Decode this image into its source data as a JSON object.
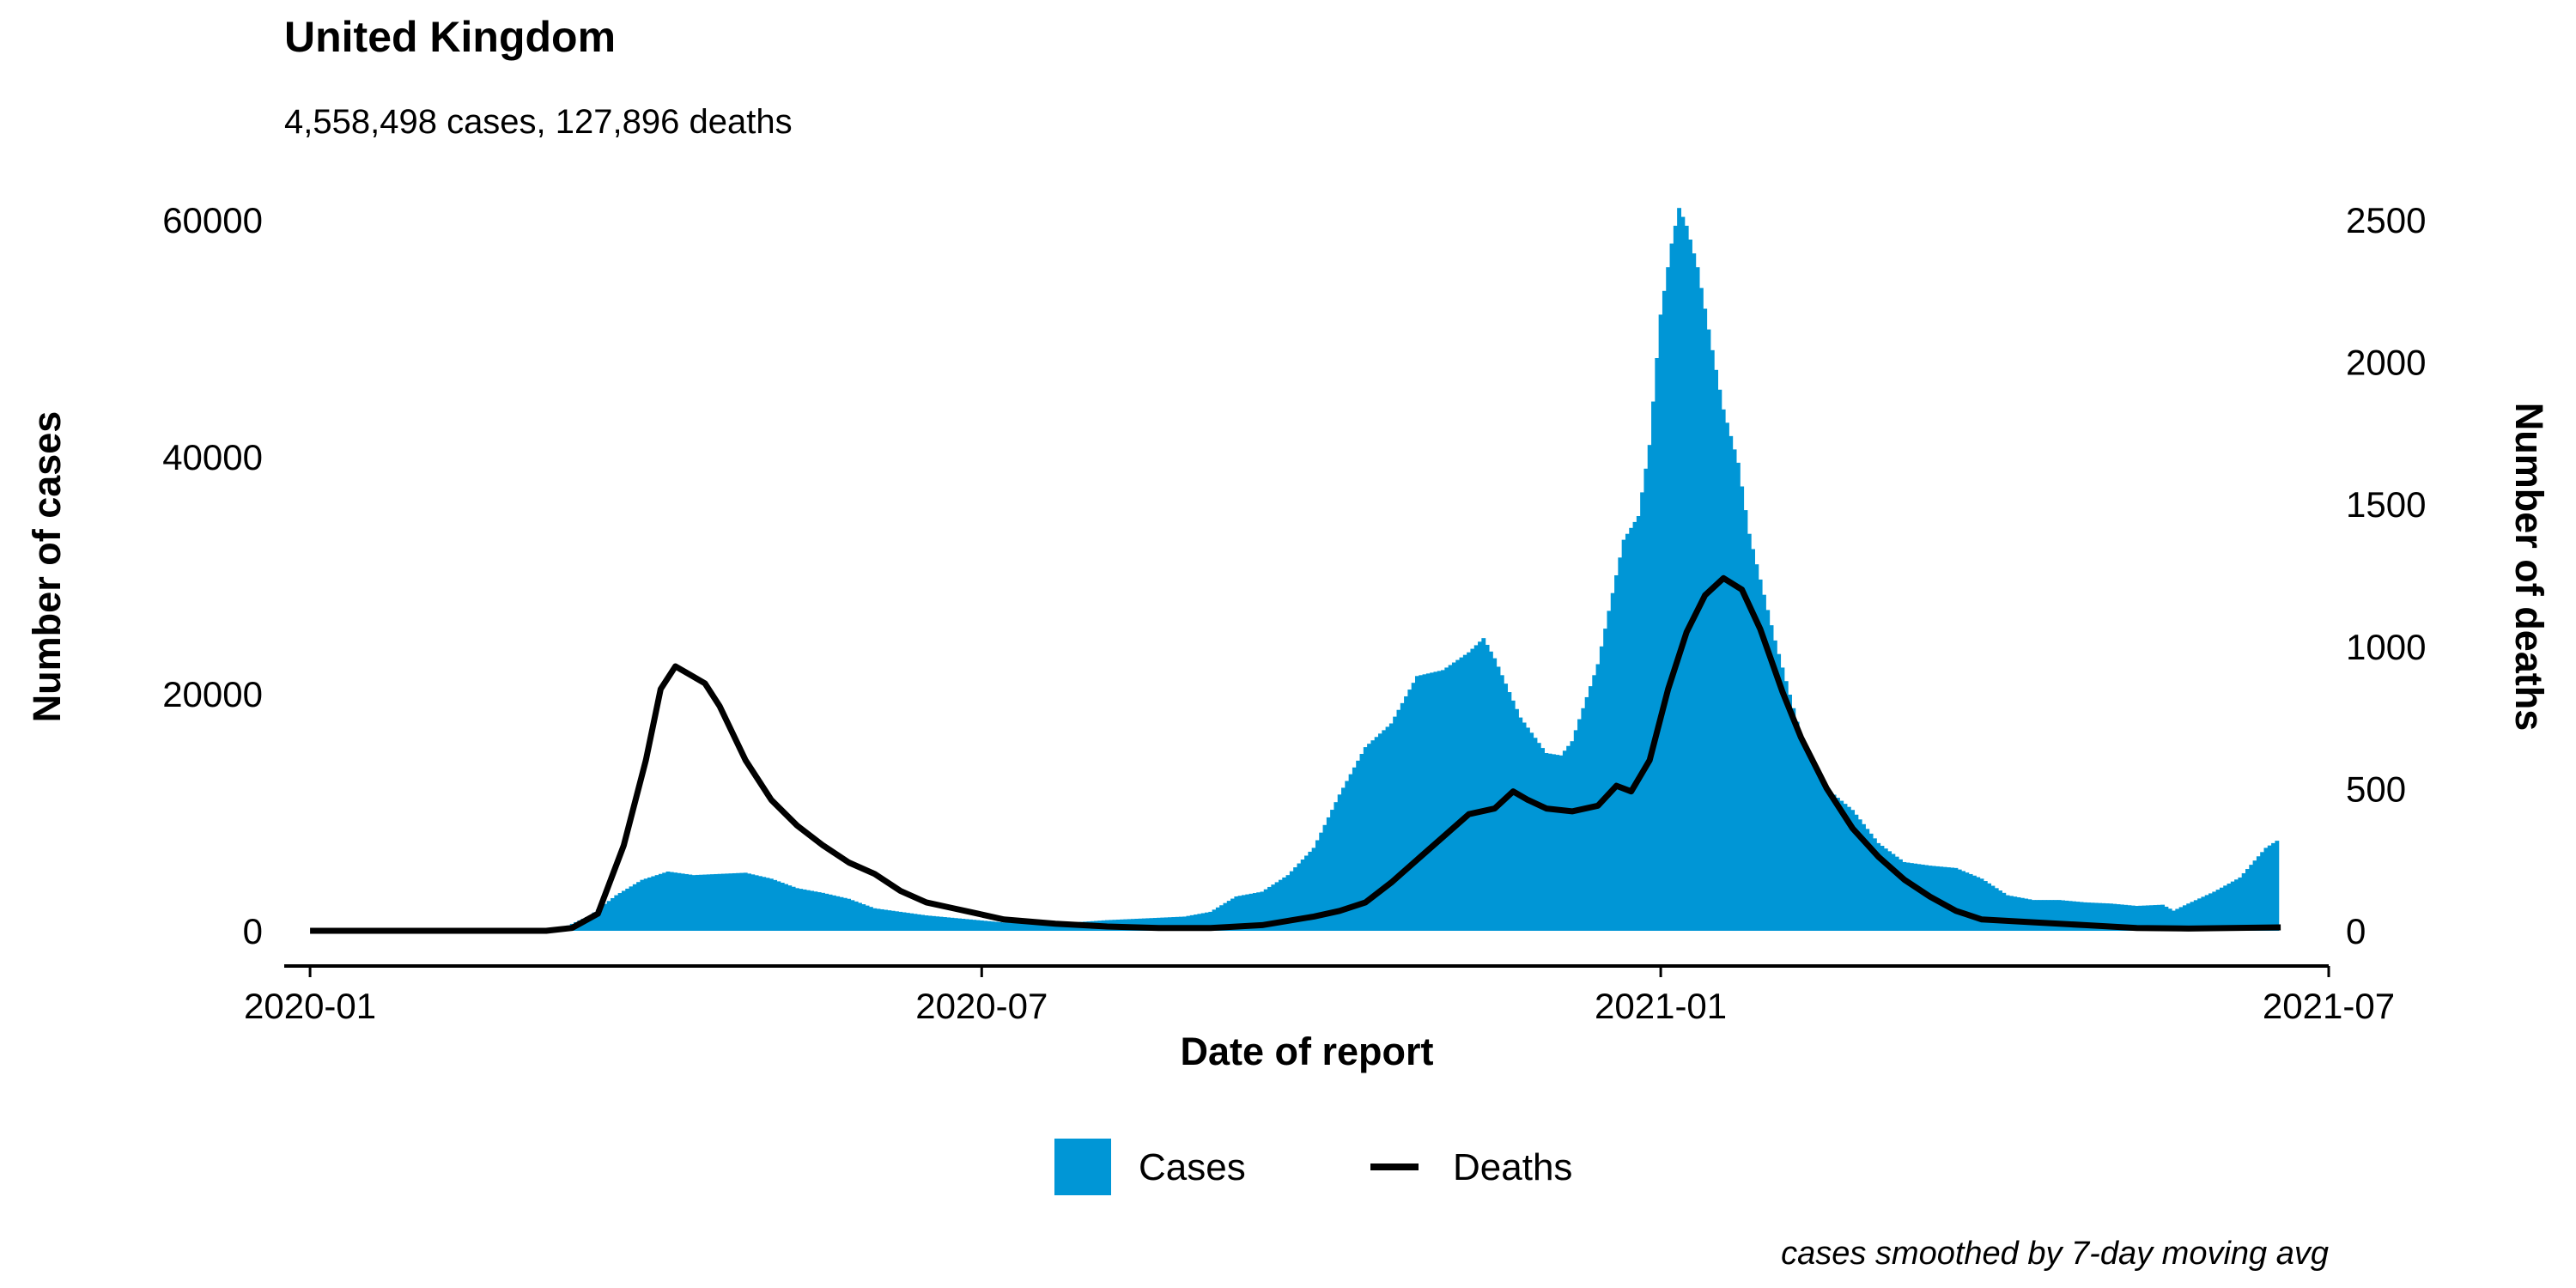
{
  "chart_data": {
    "type": "bar+line",
    "title": "United Kingdom",
    "subtitle": "4,558,498 cases, 127,896 deaths",
    "xlabel": "Date of report",
    "ylabel_left": "Number of cases",
    "ylabel_right": "Number of deaths",
    "caption": "cases smoothed by 7-day moving avg",
    "xlim": [
      "2019-12-25",
      "2021-07-01"
    ],
    "x_ticks": [
      "2020-01",
      "2020-07",
      "2021-01",
      "2021-07"
    ],
    "ylim_left": [
      0,
      60000
    ],
    "y_ticks_left": [
      "0",
      "20000",
      "40000",
      "60000"
    ],
    "ylim_right": [
      0,
      2500
    ],
    "y_ticks_right": [
      "0",
      "500",
      "1000",
      "1500",
      "2000",
      "2500"
    ],
    "grid": false,
    "legend_position": "bottom",
    "colors": {
      "cases": "#0096D6",
      "deaths": "#000000"
    },
    "series": [
      {
        "name": "Cases",
        "kind": "bar",
        "axis": "left",
        "points": [
          [
            "2020-01-01",
            0
          ],
          [
            "2020-02-15",
            0
          ],
          [
            "2020-03-01",
            20
          ],
          [
            "2020-03-10",
            300
          ],
          [
            "2020-03-17",
            1300
          ],
          [
            "2020-03-24",
            3000
          ],
          [
            "2020-03-31",
            4300
          ],
          [
            "2020-04-07",
            5000
          ],
          [
            "2020-04-14",
            4700
          ],
          [
            "2020-04-21",
            4800
          ],
          [
            "2020-04-28",
            4900
          ],
          [
            "2020-05-05",
            4400
          ],
          [
            "2020-05-12",
            3600
          ],
          [
            "2020-05-19",
            3200
          ],
          [
            "2020-05-26",
            2700
          ],
          [
            "2020-06-02",
            1900
          ],
          [
            "2020-06-09",
            1600
          ],
          [
            "2020-06-16",
            1300
          ],
          [
            "2020-06-23",
            1100
          ],
          [
            "2020-06-30",
            900
          ],
          [
            "2020-07-07",
            700
          ],
          [
            "2020-07-14",
            600
          ],
          [
            "2020-07-21",
            650
          ],
          [
            "2020-07-28",
            750
          ],
          [
            "2020-08-04",
            900
          ],
          [
            "2020-08-11",
            1000
          ],
          [
            "2020-08-18",
            1100
          ],
          [
            "2020-08-25",
            1200
          ],
          [
            "2020-09-01",
            1600
          ],
          [
            "2020-09-08",
            2900
          ],
          [
            "2020-09-15",
            3300
          ],
          [
            "2020-09-22",
            4700
          ],
          [
            "2020-09-29",
            7000
          ],
          [
            "2020-10-06",
            11500
          ],
          [
            "2020-10-13",
            15500
          ],
          [
            "2020-10-20",
            17500
          ],
          [
            "2020-10-27",
            21500
          ],
          [
            "2020-11-03",
            22000
          ],
          [
            "2020-11-10",
            23500
          ],
          [
            "2020-11-14",
            24700
          ],
          [
            "2020-11-17",
            23000
          ],
          [
            "2020-11-24",
            18000
          ],
          [
            "2020-12-01",
            15000
          ],
          [
            "2020-12-05",
            14800
          ],
          [
            "2020-12-08",
            16000
          ],
          [
            "2020-12-15",
            22500
          ],
          [
            "2020-12-22",
            33000
          ],
          [
            "2020-12-26",
            35000
          ],
          [
            "2020-12-29",
            41000
          ],
          [
            "2021-01-01",
            52000
          ],
          [
            "2021-01-04",
            58000
          ],
          [
            "2021-01-06",
            61000
          ],
          [
            "2021-01-08",
            59500
          ],
          [
            "2021-01-11",
            56000
          ],
          [
            "2021-01-15",
            49000
          ],
          [
            "2021-01-18",
            44000
          ],
          [
            "2021-01-22",
            39500
          ],
          [
            "2021-01-25",
            33500
          ],
          [
            "2021-02-01",
            24500
          ],
          [
            "2021-02-08",
            16500
          ],
          [
            "2021-02-15",
            12000
          ],
          [
            "2021-02-22",
            10200
          ],
          [
            "2021-03-01",
            7400
          ],
          [
            "2021-03-08",
            5800
          ],
          [
            "2021-03-15",
            5500
          ],
          [
            "2021-03-22",
            5300
          ],
          [
            "2021-03-29",
            4400
          ],
          [
            "2021-04-05",
            3000
          ],
          [
            "2021-04-12",
            2600
          ],
          [
            "2021-04-19",
            2600
          ],
          [
            "2021-04-26",
            2400
          ],
          [
            "2021-05-03",
            2300
          ],
          [
            "2021-05-10",
            2100
          ],
          [
            "2021-05-17",
            2200
          ],
          [
            "2021-05-20",
            1700
          ],
          [
            "2021-05-24",
            2300
          ],
          [
            "2021-05-31",
            3300
          ],
          [
            "2021-06-07",
            4500
          ],
          [
            "2021-06-14",
            7000
          ],
          [
            "2021-06-18",
            7800
          ]
        ]
      },
      {
        "name": "Deaths",
        "kind": "line",
        "axis": "right",
        "points": [
          [
            "2020-01-01",
            0
          ],
          [
            "2020-03-05",
            0
          ],
          [
            "2020-03-12",
            10
          ],
          [
            "2020-03-19",
            60
          ],
          [
            "2020-03-26",
            300
          ],
          [
            "2020-04-01",
            600
          ],
          [
            "2020-04-05",
            850
          ],
          [
            "2020-04-09",
            930
          ],
          [
            "2020-04-13",
            900
          ],
          [
            "2020-04-17",
            870
          ],
          [
            "2020-04-21",
            790
          ],
          [
            "2020-04-28",
            600
          ],
          [
            "2020-05-05",
            460
          ],
          [
            "2020-05-12",
            370
          ],
          [
            "2020-05-19",
            300
          ],
          [
            "2020-05-26",
            240
          ],
          [
            "2020-06-02",
            200
          ],
          [
            "2020-06-09",
            140
          ],
          [
            "2020-06-16",
            100
          ],
          [
            "2020-06-23",
            80
          ],
          [
            "2020-06-30",
            60
          ],
          [
            "2020-07-07",
            40
          ],
          [
            "2020-07-21",
            25
          ],
          [
            "2020-08-04",
            15
          ],
          [
            "2020-08-18",
            10
          ],
          [
            "2020-09-01",
            10
          ],
          [
            "2020-09-15",
            20
          ],
          [
            "2020-09-29",
            50
          ],
          [
            "2020-10-06",
            70
          ],
          [
            "2020-10-13",
            100
          ],
          [
            "2020-10-20",
            170
          ],
          [
            "2020-10-27",
            250
          ],
          [
            "2020-11-03",
            330
          ],
          [
            "2020-11-10",
            410
          ],
          [
            "2020-11-17",
            430
          ],
          [
            "2020-11-22",
            490
          ],
          [
            "2020-11-26",
            460
          ],
          [
            "2020-12-01",
            430
          ],
          [
            "2020-12-08",
            420
          ],
          [
            "2020-12-15",
            440
          ],
          [
            "2020-12-20",
            510
          ],
          [
            "2020-12-24",
            490
          ],
          [
            "2020-12-29",
            600
          ],
          [
            "2021-01-03",
            850
          ],
          [
            "2021-01-08",
            1050
          ],
          [
            "2021-01-13",
            1180
          ],
          [
            "2021-01-18",
            1240
          ],
          [
            "2021-01-23",
            1200
          ],
          [
            "2021-01-28",
            1060
          ],
          [
            "2021-02-03",
            840
          ],
          [
            "2021-02-08",
            680
          ],
          [
            "2021-02-15",
            500
          ],
          [
            "2021-02-22",
            360
          ],
          [
            "2021-03-01",
            260
          ],
          [
            "2021-03-08",
            180
          ],
          [
            "2021-03-15",
            120
          ],
          [
            "2021-03-22",
            70
          ],
          [
            "2021-03-29",
            40
          ],
          [
            "2021-04-12",
            30
          ],
          [
            "2021-04-26",
            20
          ],
          [
            "2021-05-10",
            10
          ],
          [
            "2021-05-24",
            8
          ],
          [
            "2021-06-18",
            12
          ]
        ]
      }
    ]
  }
}
